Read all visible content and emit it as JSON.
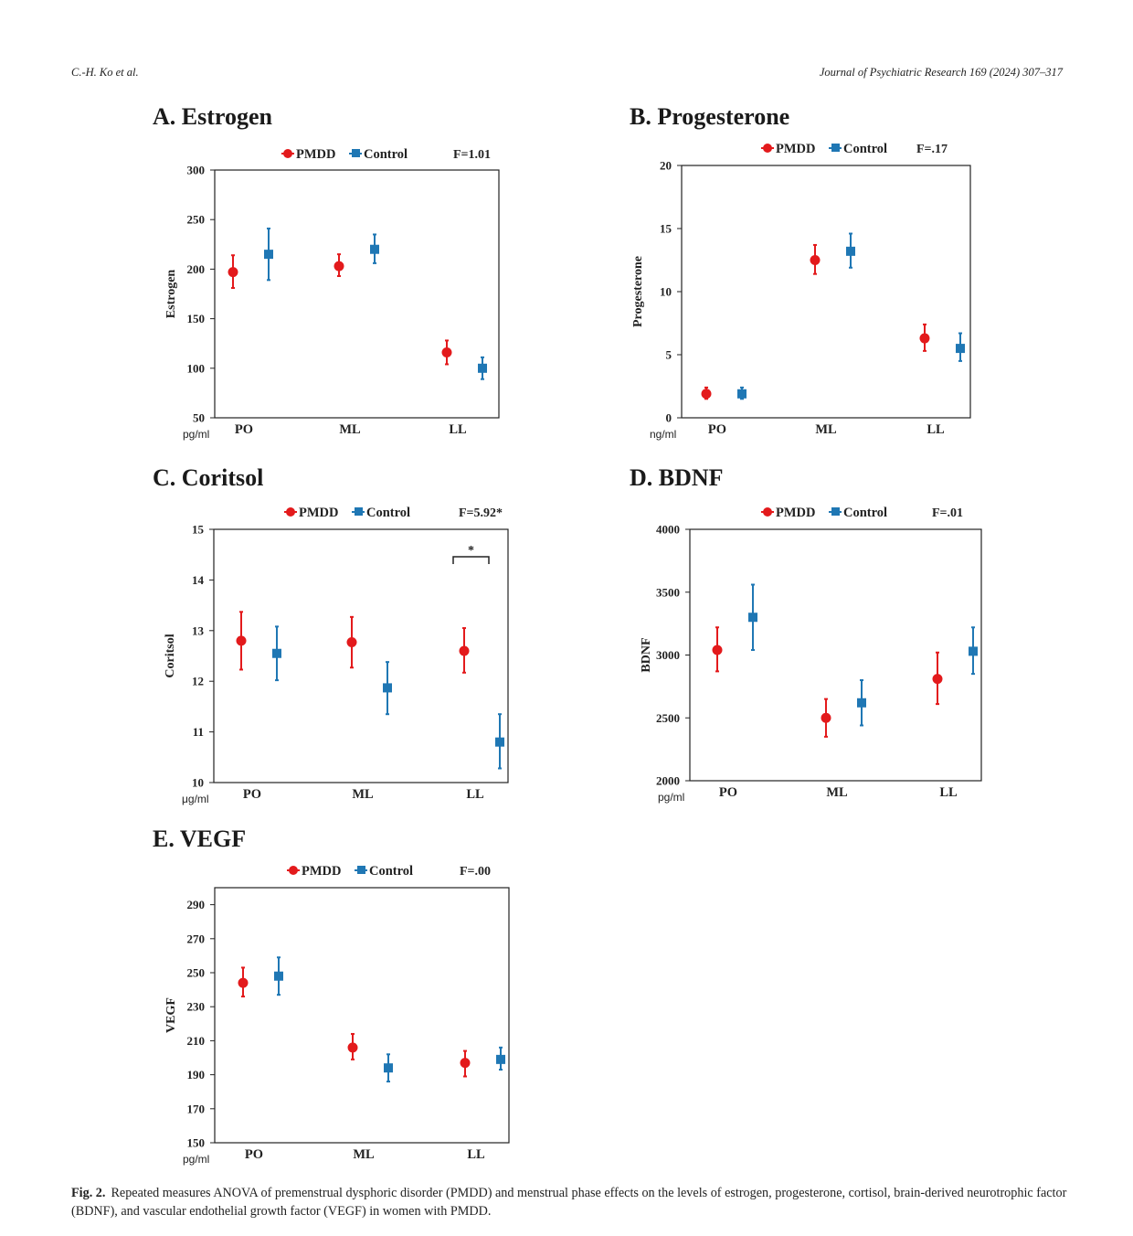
{
  "header": {
    "authors": "C.-H. Ko et al.",
    "journal": "Journal of Psychiatric Research 169 (2024) 307–317"
  },
  "colors": {
    "pmdd": "#e31a1c",
    "control": "#1f77b4",
    "axis": "#222222"
  },
  "legend": {
    "pmdd": "PMDD",
    "control": "Control"
  },
  "chart_data": [
    {
      "id": "estrogen",
      "type": "scatter",
      "panel_title": "A. Estrogen",
      "ylabel": "Estrogen",
      "unit": "pg/ml",
      "stat": "F=1.01",
      "categories": [
        "PO",
        "ML",
        "LL"
      ],
      "ylim": [
        50,
        300
      ],
      "yticks": [
        50,
        100,
        150,
        200,
        250,
        300
      ],
      "series": [
        {
          "name": "PMDD",
          "marker": "circle",
          "values": [
            197,
            203,
            116
          ],
          "err_low": [
            181,
            193,
            104
          ],
          "err_high": [
            214,
            215,
            128
          ]
        },
        {
          "name": "Control",
          "marker": "square",
          "values": [
            215,
            220,
            100
          ],
          "err_low": [
            189,
            206,
            89
          ],
          "err_high": [
            241,
            235,
            111
          ]
        }
      ]
    },
    {
      "id": "progesterone",
      "type": "scatter",
      "panel_title": "B. Progesterone",
      "ylabel": "Progesterone",
      "unit": "ng/ml",
      "stat": "F=.17",
      "categories": [
        "PO",
        "ML",
        "LL"
      ],
      "ylim": [
        0,
        20
      ],
      "yticks": [
        0,
        5,
        10,
        15,
        20
      ],
      "series": [
        {
          "name": "PMDD",
          "marker": "circle",
          "values": [
            1.9,
            12.5,
            6.3
          ],
          "err_low": [
            1.5,
            11.4,
            5.3
          ],
          "err_high": [
            2.4,
            13.7,
            7.4
          ]
        },
        {
          "name": "Control",
          "marker": "square",
          "values": [
            1.9,
            13.2,
            5.5
          ],
          "err_low": [
            1.5,
            11.9,
            4.5
          ],
          "err_high": [
            2.4,
            14.6,
            6.7
          ]
        }
      ]
    },
    {
      "id": "cortisol",
      "type": "scatter",
      "panel_title": "C. Coritsol",
      "ylabel": "Coritsol",
      "unit": "μg/ml",
      "stat": "F=5.92*",
      "significance": "*",
      "categories": [
        "PO",
        "ML",
        "LL"
      ],
      "ylim": [
        10,
        15
      ],
      "yticks": [
        10,
        11,
        12,
        13,
        14,
        15
      ],
      "series": [
        {
          "name": "PMDD",
          "marker": "circle",
          "values": [
            12.8,
            12.77,
            12.6
          ],
          "err_low": [
            12.23,
            12.27,
            12.17
          ],
          "err_high": [
            13.37,
            13.27,
            13.05
          ]
        },
        {
          "name": "Control",
          "marker": "square",
          "values": [
            12.55,
            11.87,
            10.8
          ],
          "err_low": [
            12.02,
            11.35,
            10.28
          ],
          "err_high": [
            13.08,
            12.38,
            11.35
          ]
        }
      ]
    },
    {
      "id": "bdnf",
      "type": "scatter",
      "panel_title": "D. BDNF",
      "ylabel": "BDNF",
      "unit": "pg/ml",
      "stat": "F=.01",
      "categories": [
        "PO",
        "ML",
        "LL"
      ],
      "ylim": [
        2000,
        4000
      ],
      "yticks": [
        2000,
        2500,
        3000,
        3500,
        4000
      ],
      "series": [
        {
          "name": "PMDD",
          "marker": "circle",
          "values": [
            3040,
            2500,
            2810
          ],
          "err_low": [
            2870,
            2350,
            2610
          ],
          "err_high": [
            3220,
            2650,
            3020
          ]
        },
        {
          "name": "Control",
          "marker": "square",
          "values": [
            3300,
            2620,
            3030
          ],
          "err_low": [
            3040,
            2440,
            2850
          ],
          "err_high": [
            3560,
            2800,
            3220
          ]
        }
      ]
    },
    {
      "id": "vegf",
      "type": "scatter",
      "panel_title": "E. VEGF",
      "ylabel": "VEGF",
      "unit": "pg/ml",
      "stat": "F=.00",
      "categories": [
        "PO",
        "ML",
        "LL"
      ],
      "ylim": [
        150,
        300
      ],
      "yticks": [
        150,
        170,
        190,
        210,
        230,
        250,
        270,
        290
      ],
      "series": [
        {
          "name": "PMDD",
          "marker": "circle",
          "values": [
            244,
            206,
            197
          ],
          "err_low": [
            236,
            199,
            189
          ],
          "err_high": [
            253,
            214,
            204
          ]
        },
        {
          "name": "Control",
          "marker": "square",
          "values": [
            248,
            194,
            199
          ],
          "err_low": [
            237,
            186,
            193
          ],
          "err_high": [
            259,
            202,
            206
          ]
        }
      ]
    }
  ],
  "caption": {
    "label": "Fig. 2.",
    "text": "Repeated measures ANOVA of premenstrual dysphoric disorder (PMDD) and menstrual phase effects on the levels of estrogen, progesterone, cortisol, brain-derived neurotrophic factor (BDNF), and vascular endothelial growth factor (VEGF) in women with PMDD."
  }
}
